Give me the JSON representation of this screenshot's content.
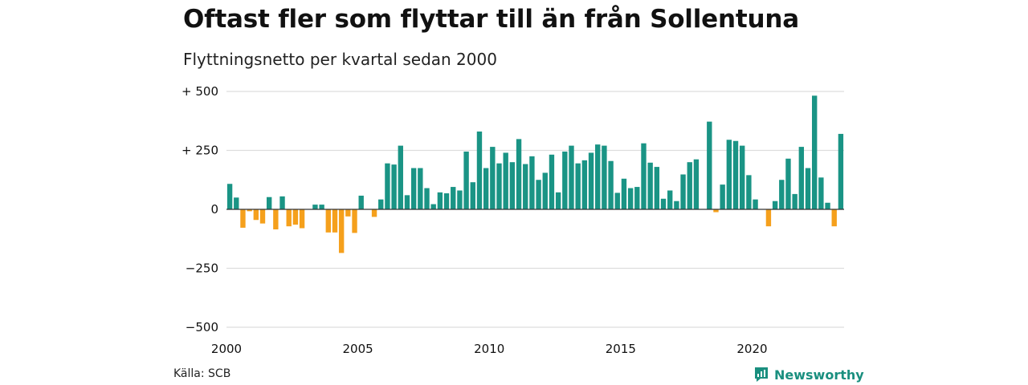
{
  "title": "Oftast fler som flyttar till än från Sollentuna",
  "subtitle": "Flyttningsnetto per kvartal sedan 2000",
  "source": "Källa: SCB",
  "brand": "Newsworthy",
  "chart_data": {
    "type": "bar",
    "title": "Oftast fler som flyttar till än från Sollentuna",
    "subtitle": "Flyttningsnetto per kvartal sedan 2000",
    "xlabel": "",
    "ylabel": "",
    "ylim": [
      -500,
      500
    ],
    "xlim": [
      2000,
      2023.5
    ],
    "yticks": [
      500,
      250,
      0,
      -250,
      -500
    ],
    "ytick_labels": [
      "+ 500",
      "+ 250",
      "0",
      "−250",
      "−500"
    ],
    "xticks": [
      2000,
      2005,
      2010,
      2015,
      2020
    ],
    "xtick_labels": [
      "2000",
      "2005",
      "2010",
      "2015",
      "2020"
    ],
    "grid": true,
    "colors": {
      "positive": "#1a9485",
      "negative": "#f5a01c",
      "grid": "#dddddd",
      "zero": "#333333"
    },
    "start_year": 2000,
    "values": [
      108,
      50,
      -78,
      -8,
      -45,
      -60,
      52,
      -85,
      55,
      -72,
      -65,
      -80,
      0,
      20,
      20,
      -98,
      -98,
      -185,
      -30,
      -100,
      58,
      0,
      -32,
      42,
      195,
      190,
      270,
      60,
      175,
      175,
      90,
      22,
      72,
      68,
      95,
      80,
      245,
      115,
      330,
      175,
      265,
      195,
      240,
      200,
      298,
      192,
      225,
      125,
      155,
      232,
      72,
      245,
      270,
      195,
      208,
      240,
      275,
      270,
      205,
      70,
      130,
      90,
      95,
      280,
      198,
      180,
      45,
      80,
      35,
      148,
      200,
      212,
      0,
      372,
      -12,
      105,
      295,
      290,
      270,
      145,
      42,
      0,
      -72,
      35,
      125,
      215,
      65,
      265,
      175,
      482,
      135,
      28,
      -72,
      320
    ]
  }
}
